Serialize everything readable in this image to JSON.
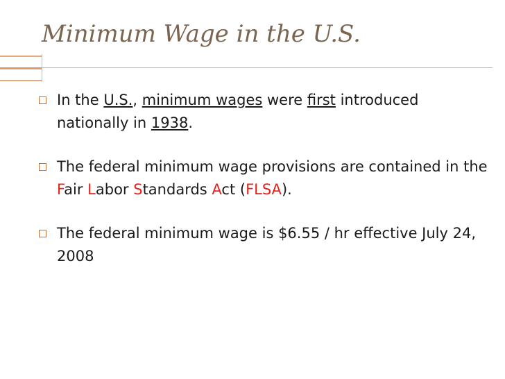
{
  "slide": {
    "title": "Minimum Wage in the U.S.",
    "colors": {
      "title": "#7a6650",
      "accent_orange": "#e0996a",
      "bullet_box": "#c86a2b",
      "red_letter": "#e8201a",
      "text": "#1a1a1a"
    },
    "bullets": [
      {
        "p1": "In the ",
        "us": "U.S.",
        "p2": ", ",
        "min_wages": "minimum wages",
        "p3": " were ",
        "first": "first",
        "p4": " introduced nationally in ",
        "year": "1938",
        "p5": "."
      },
      {
        "p1": "The federal minimum wage provisions are contained in the ",
        "f": "F",
        "air": "air ",
        "l": "L",
        "abor": "abor ",
        "s": "S",
        "tandards": "tandards ",
        "a": "A",
        "ct": "ct (",
        "flsa": "FLSA",
        "p2": ")."
      },
      {
        "p1": "The federal minimum wage is ",
        "amount": "$6.55 / hr",
        "p2": " effective July 24, 2008"
      }
    ],
    "bullet_icon": "hollow-square-bullet-icon"
  }
}
